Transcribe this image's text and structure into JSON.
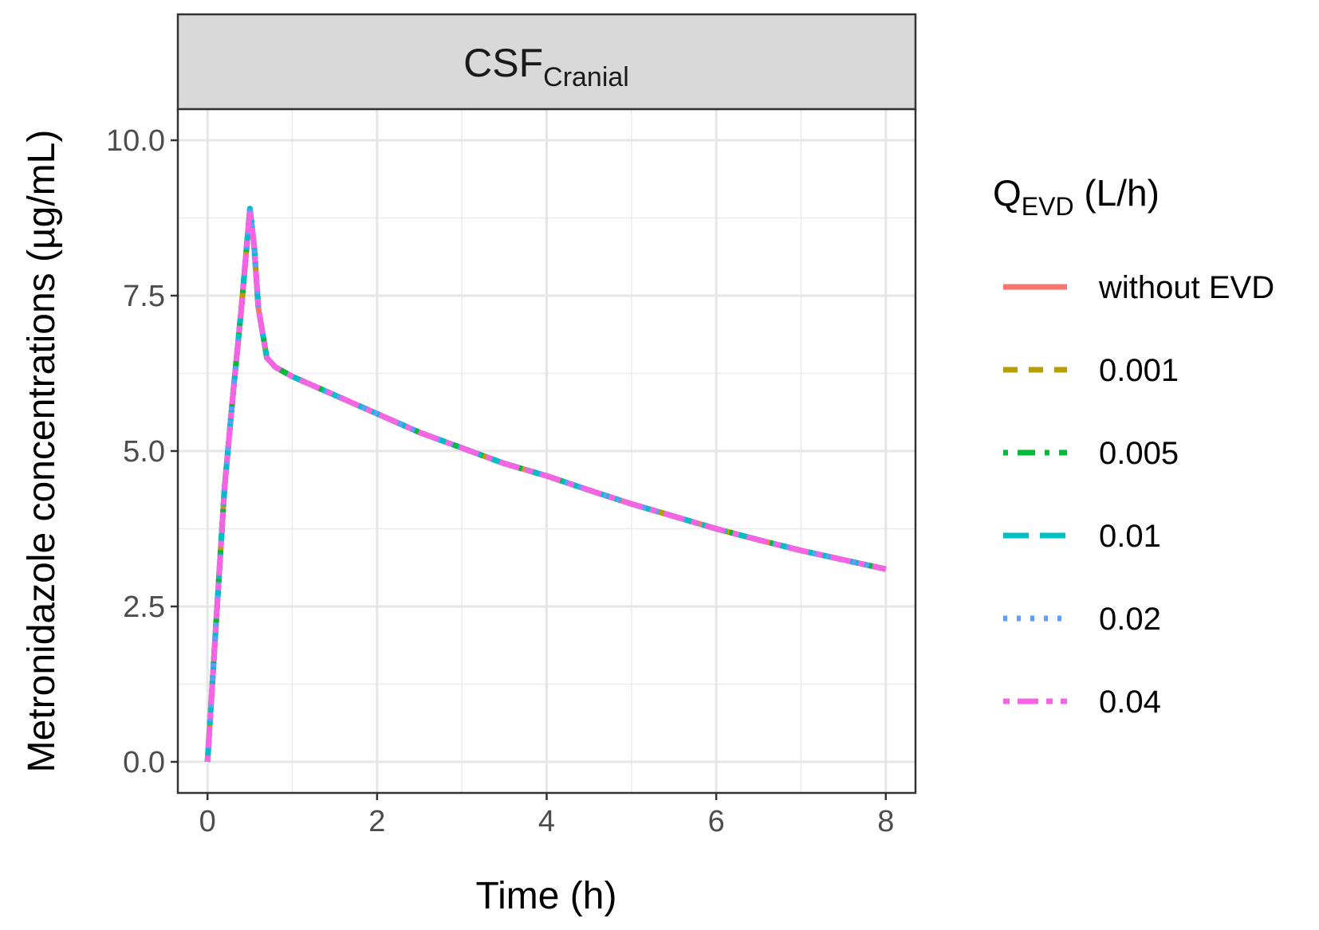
{
  "chart_data": {
    "type": "line",
    "facet_label": {
      "main": "CSF",
      "sub": "Cranial"
    },
    "xlabel": "Time (h)",
    "ylabel": "Metronidazole concentrations (µg/mL)",
    "xlim": [
      -0.35,
      8.35
    ],
    "ylim": [
      -0.5,
      10.5
    ],
    "x_ticks": [
      0,
      2,
      4,
      6,
      8
    ],
    "x_tick_labels": [
      "0",
      "2",
      "4",
      "6",
      "8"
    ],
    "y_ticks": [
      0,
      2.5,
      5,
      7.5,
      10
    ],
    "y_tick_labels": [
      "0.0",
      "2.5",
      "5.0",
      "7.5",
      "10.0"
    ],
    "grid": true,
    "legend": {
      "title_main": "Q",
      "title_sub": "EVD",
      "title_suffix": " (L/h)",
      "placement": "right"
    },
    "x": [
      0,
      0.1,
      0.2,
      0.3,
      0.4,
      0.5,
      0.55,
      0.6,
      0.7,
      0.8,
      1,
      1.5,
      2,
      2.5,
      3,
      3.5,
      4,
      4.5,
      5,
      5.5,
      6,
      6.5,
      7,
      7.5,
      8
    ],
    "series": [
      {
        "name": "without EVD",
        "color": "#F8766D",
        "dash": "solid",
        "values": [
          0,
          2.2,
          4.4,
          5.9,
          7.3,
          8.9,
          8.3,
          7.3,
          6.5,
          6.35,
          6.2,
          5.9,
          5.6,
          5.3,
          5.05,
          4.8,
          4.6,
          4.37,
          4.15,
          3.95,
          3.75,
          3.57,
          3.4,
          3.25,
          3.1
        ]
      },
      {
        "name": "0.001",
        "color": "#B79F00",
        "dash": "dashed",
        "values": [
          0,
          2.2,
          4.4,
          5.9,
          7.3,
          8.9,
          8.3,
          7.3,
          6.5,
          6.35,
          6.2,
          5.9,
          5.6,
          5.3,
          5.05,
          4.8,
          4.6,
          4.37,
          4.15,
          3.95,
          3.75,
          3.57,
          3.4,
          3.25,
          3.1
        ]
      },
      {
        "name": "0.005",
        "color": "#00BA38",
        "dash": "dotdash",
        "values": [
          0,
          2.2,
          4.4,
          5.9,
          7.3,
          8.9,
          8.3,
          7.3,
          6.5,
          6.35,
          6.2,
          5.9,
          5.6,
          5.3,
          5.05,
          4.8,
          4.6,
          4.37,
          4.15,
          3.95,
          3.75,
          3.57,
          3.4,
          3.25,
          3.1
        ]
      },
      {
        "name": "0.01",
        "color": "#00BFC4",
        "dash": "longdash",
        "values": [
          0,
          2.2,
          4.4,
          5.9,
          7.3,
          8.9,
          8.3,
          7.3,
          6.5,
          6.35,
          6.2,
          5.9,
          5.6,
          5.3,
          5.05,
          4.8,
          4.6,
          4.37,
          4.15,
          3.95,
          3.75,
          3.57,
          3.4,
          3.25,
          3.1
        ]
      },
      {
        "name": "0.02",
        "color": "#619CFF",
        "dash": "dotted",
        "values": [
          0,
          2.2,
          4.4,
          5.9,
          7.3,
          8.9,
          8.3,
          7.3,
          6.5,
          6.35,
          6.2,
          5.9,
          5.6,
          5.3,
          5.05,
          4.8,
          4.6,
          4.37,
          4.15,
          3.95,
          3.75,
          3.57,
          3.4,
          3.25,
          3.1
        ]
      },
      {
        "name": "0.04",
        "color": "#F564E3",
        "dash": "twodash",
        "values": [
          0,
          2.2,
          4.4,
          5.9,
          7.3,
          8.9,
          8.3,
          7.3,
          6.5,
          6.35,
          6.2,
          5.9,
          5.6,
          5.3,
          5.05,
          4.8,
          4.6,
          4.37,
          4.15,
          3.95,
          3.75,
          3.57,
          3.4,
          3.25,
          3.1
        ]
      }
    ]
  }
}
